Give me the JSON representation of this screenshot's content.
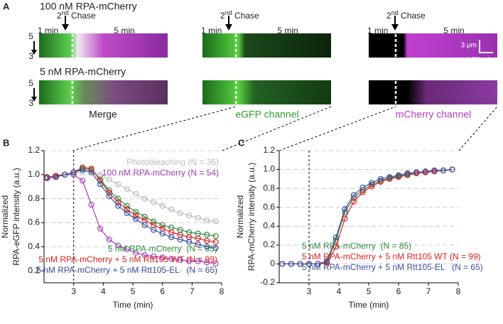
{
  "figure": {
    "panel_label": "A",
    "row1_label": "100 nM RPA-mCherry",
    "row2_label": "5 nM RPA-mCherry",
    "chase": [
      "2",
      "nd",
      " Chase"
    ],
    "start_label": "1 min",
    "duration_label": "5 min",
    "pos_top": "5",
    "pos_bottom": "3",
    "columns": [
      "Merge",
      "eGFP channel",
      "mCherry channel"
    ],
    "scale_y": "3 μm",
    "scale_x": "0.75 min"
  },
  "chart_data": [
    {
      "type": "line",
      "panel_label": "B",
      "ylabel": [
        "Normalized",
        "RPA-eGFP intensity (a.u.)"
      ],
      "xlabel": "Time (min)",
      "xlim": [
        2,
        8
      ],
      "xticks": [
        3,
        4,
        5,
        6,
        7,
        8
      ],
      "ylim": [
        0.1,
        1.2
      ],
      "yticks": [
        0.2,
        0.4,
        0.6,
        0.8,
        {
          "value": 1,
          "label": "1.0"
        },
        1.2
      ],
      "grid": true,
      "vline": 3,
      "x": [
        2.1,
        2.4,
        2.7,
        3.0,
        3.3,
        3.6,
        3.9,
        4.2,
        4.5,
        4.8,
        5.1,
        5.4,
        5.7,
        6.0,
        6.3,
        6.6,
        6.9,
        7.2,
        7.5,
        7.8
      ],
      "series": [
        {
          "name": "Photobleaching (N = 36)",
          "color": "#bdbdbd",
          "values": [
            0.98,
            0.99,
            1.0,
            1.01,
            1.02,
            1.03,
            1.0,
            0.96,
            0.92,
            0.88,
            0.84,
            0.8,
            0.77,
            0.74,
            0.71,
            0.68,
            0.66,
            0.64,
            0.62,
            0.61
          ]
        },
        {
          "name": "100 nM RPA-mCherry (N = 54)",
          "color": "#a23fb8",
          "values": [
            0.97,
            0.98,
            1.0,
            1.0,
            0.95,
            0.75,
            0.55,
            0.46,
            0.41,
            0.38,
            0.35,
            0.33,
            0.32,
            0.31,
            0.3,
            0.29,
            0.28,
            0.28,
            0.27,
            0.26
          ]
        },
        {
          "name": "5 nM RPA-mCherry  (N = 85)",
          "color": "#2e8b3e",
          "values": [
            0.98,
            0.99,
            1.0,
            1.02,
            1.05,
            1.04,
            0.96,
            0.87,
            0.8,
            0.74,
            0.69,
            0.65,
            0.61,
            0.58,
            0.56,
            0.54,
            0.52,
            0.51,
            0.5,
            0.49
          ]
        },
        {
          "name": "5 nM RPA-mCherry + 5 nM Rtt105 WT (N = 99)",
          "color": "#e02020",
          "values": [
            0.98,
            0.99,
            1.0,
            1.02,
            1.06,
            1.05,
            0.95,
            0.85,
            0.77,
            0.71,
            0.66,
            0.62,
            0.58,
            0.55,
            0.52,
            0.5,
            0.48,
            0.47,
            0.45,
            0.44
          ]
        },
        {
          "name": "5 nM RPA-mCherry + 5 nM Rtt105-EL   (N = 65)",
          "color": "#3a4fa0",
          "values": [
            0.97,
            0.98,
            1.0,
            1.02,
            1.04,
            1.02,
            0.92,
            0.82,
            0.74,
            0.68,
            0.63,
            0.58,
            0.54,
            0.51,
            0.48,
            0.46,
            0.44,
            0.42,
            0.4,
            0.39
          ]
        }
      ]
    },
    {
      "type": "line",
      "panel_label": "C",
      "ylabel": [
        "Normalized",
        "RPA-mCherry intensity (a.u.)"
      ],
      "xlabel": "Time (min)",
      "xlim": [
        2,
        8
      ],
      "xticks": [
        3,
        4,
        5,
        6,
        7,
        8
      ],
      "ylim": [
        -0.2,
        1.2
      ],
      "yticks": [
        -0.2,
        0,
        0.2,
        0.4,
        0.6,
        0.8,
        {
          "value": 1,
          "label": "1.0"
        },
        1.2
      ],
      "grid": true,
      "vline": 3,
      "x": [
        2.1,
        2.4,
        2.7,
        3.0,
        3.3,
        3.6,
        3.9,
        4.2,
        4.5,
        4.8,
        5.1,
        5.4,
        5.7,
        6.0,
        6.3,
        6.6,
        6.9,
        7.2,
        7.5,
        7.8
      ],
      "series": [
        {
          "name": "5 nM RPA-mCherry  (N = 85)",
          "color": "#2e8b3e",
          "values": [
            0,
            0,
            0,
            0,
            0,
            0.02,
            0.25,
            0.55,
            0.7,
            0.78,
            0.84,
            0.88,
            0.91,
            0.93,
            0.95,
            0.96,
            0.97,
            0.98,
            0.99,
            1.0
          ]
        },
        {
          "name": "5 nM RPA-mCherry + 5 nM Rtt105 WT (N = 99)",
          "color": "#e02020",
          "values": [
            0,
            0,
            0,
            0,
            0,
            0.01,
            0.18,
            0.48,
            0.66,
            0.76,
            0.82,
            0.87,
            0.9,
            0.92,
            0.94,
            0.96,
            0.97,
            0.98,
            0.99,
            1.0
          ]
        },
        {
          "name": "5 nM RPA-mCherry + 5 nM Rtt105-EL   (N = 65)",
          "color": "#3a4fa0",
          "values": [
            0,
            0,
            0,
            0,
            0,
            0.03,
            0.28,
            0.58,
            0.73,
            0.81,
            0.86,
            0.9,
            0.92,
            0.94,
            0.96,
            0.97,
            0.98,
            0.99,
            0.99,
            1.0
          ]
        }
      ]
    }
  ]
}
